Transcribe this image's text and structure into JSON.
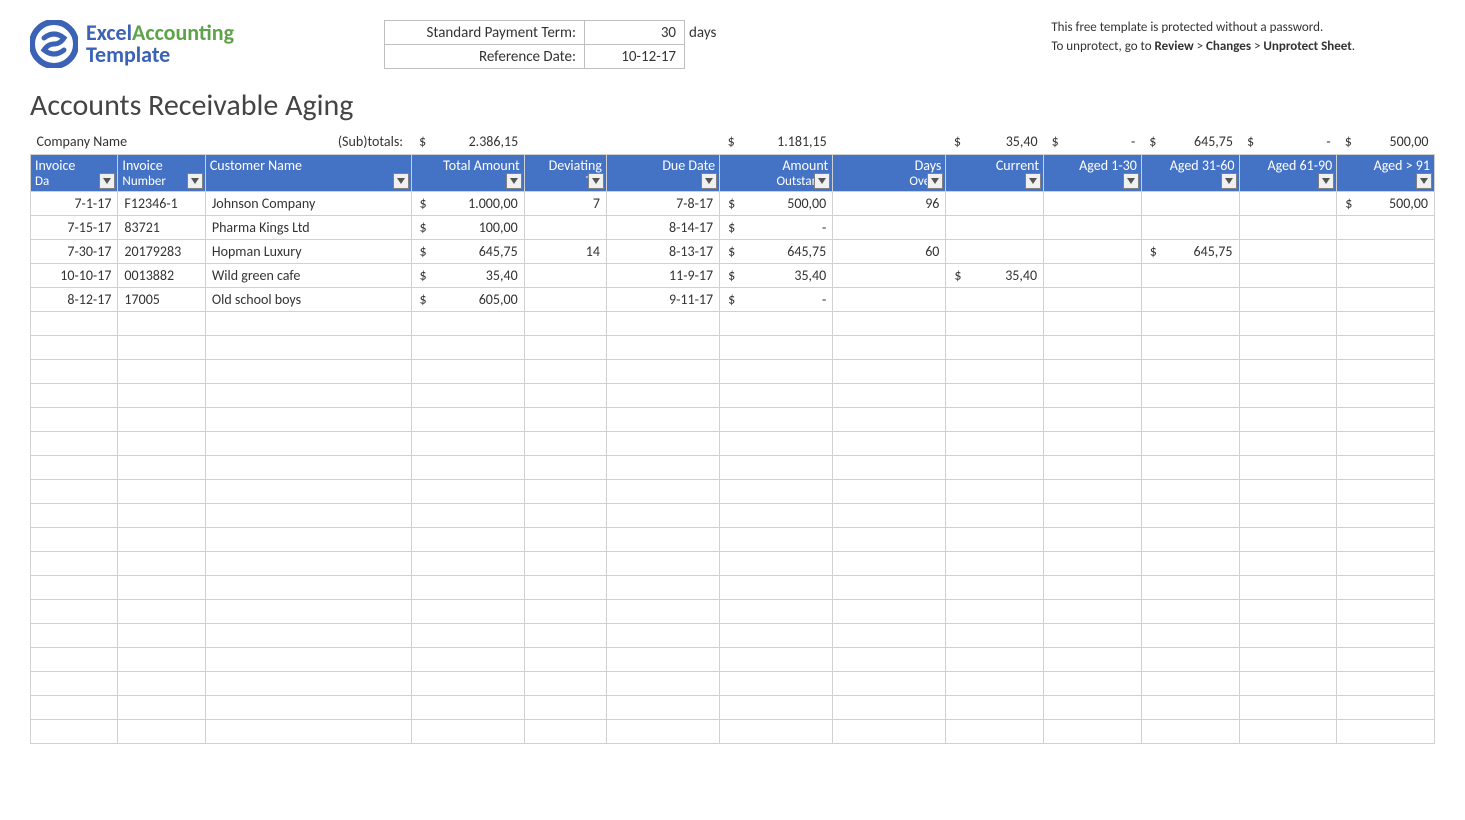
{
  "logo": {
    "brand1": "Excel",
    "brand2": "Accounting",
    "brand3": "Template"
  },
  "params": {
    "term_label": "Standard Payment Term:",
    "term_value": "30",
    "term_unit": "days",
    "ref_label": "Reference Date:",
    "ref_value": "10-12-17"
  },
  "notice": {
    "line1": "This free template is protected without a password.",
    "line2_pre": "To unprotect, go to ",
    "line2_b1": "Review",
    "line2_sep1": " > ",
    "line2_b2": "Changes",
    "line2_sep2": " > ",
    "line2_b3": "Unprotect Sheet",
    "line2_post": "."
  },
  "title": "Accounts Receivable Aging",
  "company_label": "Company Name",
  "subtotals_label": "(Sub)totals:",
  "currency": "$",
  "dash": "-",
  "subtotals": {
    "total": "2.386,15",
    "outstanding": "1.181,15",
    "current": "35,40",
    "a1": "-",
    "a2": "645,75",
    "a3": "-",
    "a4": "500,00"
  },
  "columns": {
    "invoice_date": {
      "l1": "Invoice",
      "l2": "Da"
    },
    "invoice_no": {
      "l1": "Invoice",
      "l2": "Number"
    },
    "customer": {
      "l1": "Customer Name",
      "l2": ""
    },
    "total": {
      "l1": "Total Amount",
      "l2": ""
    },
    "deviating": {
      "l1": "Deviating",
      "l2": "Ter"
    },
    "due": {
      "l1": "Due Date",
      "l2": ""
    },
    "amount": {
      "l1": "Amount",
      "l2": "Outstandi"
    },
    "days": {
      "l1": "Days",
      "l2": "Overd"
    },
    "current": {
      "l1": "Current",
      "l2": ""
    },
    "a1": {
      "l1": "Aged 1-30",
      "l2": ""
    },
    "a2": {
      "l1": "Aged 31-60",
      "l2": ""
    },
    "a3": {
      "l1": "Aged 61-90",
      "l2": ""
    },
    "a4": {
      "l1": "Aged > 91",
      "l2": ""
    }
  },
  "rows": [
    {
      "date": "7-1-17",
      "invno": "F12346-1",
      "cust": "Johnson Company",
      "total": "1.000,00",
      "dev": "7",
      "due": "7-8-17",
      "amt": "500,00",
      "days": "96",
      "cur": "",
      "a1": "",
      "a2": "",
      "a3": "",
      "a4": "500,00"
    },
    {
      "date": "7-15-17",
      "invno": "83721",
      "cust": "Pharma Kings Ltd",
      "total": "100,00",
      "dev": "",
      "due": "8-14-17",
      "amt": "-",
      "days": "",
      "cur": "",
      "a1": "",
      "a2": "",
      "a3": "",
      "a4": ""
    },
    {
      "date": "7-30-17",
      "invno": "20179283",
      "cust": "Hopman Luxury",
      "total": "645,75",
      "dev": "14",
      "due": "8-13-17",
      "amt": "645,75",
      "days": "60",
      "cur": "",
      "a1": "",
      "a2": "645,75",
      "a3": "",
      "a4": ""
    },
    {
      "date": "10-10-17",
      "invno": "0013882",
      "cust": "Wild green cafe",
      "total": "35,40",
      "dev": "",
      "due": "11-9-17",
      "amt": "35,40",
      "days": "",
      "cur": "35,40",
      "a1": "",
      "a2": "",
      "a3": "",
      "a4": ""
    },
    {
      "date": "8-12-17",
      "invno": "17005",
      "cust": "Old school boys",
      "total": "605,00",
      "dev": "",
      "due": "9-11-17",
      "amt": "-",
      "days": "",
      "cur": "",
      "a1": "",
      "a2": "",
      "a3": "",
      "a4": ""
    }
  ],
  "empty_row_count": 18,
  "colors": {
    "header_bg": "#4472c4",
    "header_fg": "#ffffff",
    "grid": "#d0d0d0",
    "logo_blue": "#3b62b5",
    "logo_green": "#5ea34a"
  }
}
